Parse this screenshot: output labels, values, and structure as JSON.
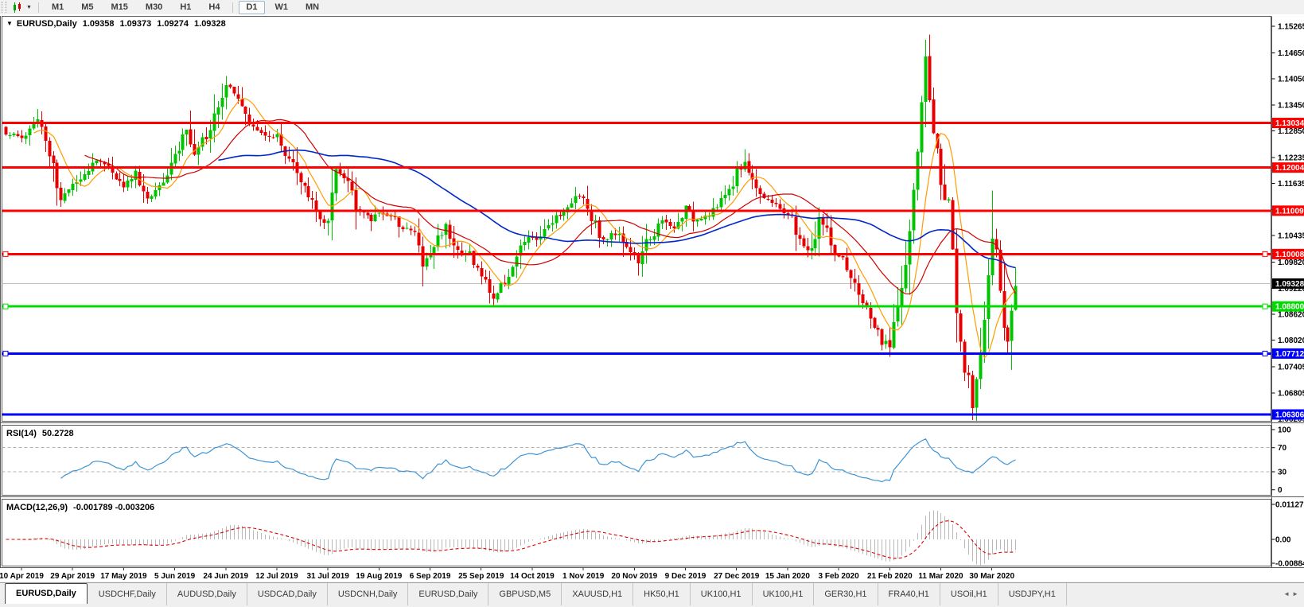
{
  "toolbar": {
    "chart_type_icon": "candlestick-chart-icon",
    "dropdown_icon": "chevron-down-icon",
    "timeframes": [
      {
        "label": "M1",
        "active": false
      },
      {
        "label": "M5",
        "active": false
      },
      {
        "label": "M15",
        "active": false
      },
      {
        "label": "M30",
        "active": false
      },
      {
        "label": "H1",
        "active": false
      },
      {
        "label": "H4",
        "active": false
      },
      {
        "label": "D1",
        "active": true
      },
      {
        "label": "W1",
        "active": false
      },
      {
        "label": "MN",
        "active": false
      }
    ]
  },
  "chart": {
    "title_symbol": "EURUSD,Daily",
    "ohlc": {
      "open": "1.09358",
      "high": "1.09373",
      "low": "1.09274",
      "close": "1.09328"
    },
    "price_axis_ticks": [
      "1.15265",
      "1.14650",
      "1.14050",
      "1.13450",
      "1.12850",
      "1.12235",
      "1.11635",
      "1.11030",
      "1.10435",
      "1.09820",
      "1.09220",
      "1.08620",
      "1.08020",
      "1.07405",
      "1.06805",
      "1.06205"
    ],
    "current_price": {
      "label": "1.09328",
      "price": 1.09328
    },
    "levels": [
      {
        "price": 1.13034,
        "label": "1.13034",
        "color": "#ff0000",
        "width": 3,
        "handles": false
      },
      {
        "price": 1.12004,
        "label": "1.12004",
        "color": "#ff0000",
        "width": 3,
        "handles": false
      },
      {
        "price": 1.11009,
        "label": "1.11009",
        "color": "#ff0000",
        "width": 3,
        "handles": false
      },
      {
        "price": 1.10008,
        "label": "1.10008",
        "color": "#ff0000",
        "width": 3,
        "handles": true
      },
      {
        "price": 1.088,
        "label": "1.08800",
        "color": "#00dc00",
        "width": 3,
        "handles": true
      },
      {
        "price": 1.07712,
        "label": "1.07712",
        "color": "#0000ff",
        "width": 3,
        "handles": true
      },
      {
        "price": 1.06306,
        "label": "1.06306",
        "color": "#0000ff",
        "width": 3,
        "handles": false
      }
    ]
  },
  "rsi": {
    "name": "RSI(14)",
    "value": "50.2728",
    "axis_ticks": [
      "100",
      "70",
      "30",
      "0"
    ],
    "level_lines": [
      70,
      30
    ]
  },
  "macd": {
    "name": "MACD(12,26,9)",
    "values": "-0.001789 -0.003206",
    "axis_ticks": [
      "0.011277",
      "0.00",
      "-0.00884"
    ]
  },
  "date_axis": [
    "10 Apr 2019",
    "29 Apr 2019",
    "17 May 2019",
    "5 Jun 2019",
    "24 Jun 2019",
    "12 Jul 2019",
    "31 Jul 2019",
    "19 Aug 2019",
    "6 Sep 2019",
    "25 Sep 2019",
    "14 Oct 2019",
    "1 Nov 2019",
    "20 Nov 2019",
    "9 Dec 2019",
    "27 Dec 2019",
    "15 Jan 2020",
    "3 Feb 2020",
    "21 Feb 2020",
    "11 Mar 2020",
    "30 Mar 2020"
  ],
  "tab_bar": {
    "tabs": [
      {
        "label": "EURUSD,Daily",
        "active": true
      },
      {
        "label": "USDCHF,Daily",
        "active": false
      },
      {
        "label": "AUDUSD,Daily",
        "active": false
      },
      {
        "label": "USDCAD,Daily",
        "active": false
      },
      {
        "label": "USDCNH,Daily",
        "active": false
      },
      {
        "label": "EURUSD,Daily",
        "active": false
      },
      {
        "label": "GBPUSD,M5",
        "active": false
      },
      {
        "label": "XAUUSD,H1",
        "active": false
      },
      {
        "label": "HK50,H1",
        "active": false
      },
      {
        "label": "UK100,H1",
        "active": false
      },
      {
        "label": "UK100,H1",
        "active": false
      },
      {
        "label": "GER30,H1",
        "active": false
      },
      {
        "label": "FRA40,H1",
        "active": false
      },
      {
        "label": "USOil,H1",
        "active": false
      },
      {
        "label": "USDJPY,H1",
        "active": false
      }
    ],
    "scroll_icons": "◄ ►"
  },
  "colors": {
    "bull": "#00c400",
    "bear": "#e60000",
    "ma_fast": "#ff9c00",
    "ma_mid": "#d20000",
    "ma_slow": "#0028c8",
    "rsi_line": "#3f95d4",
    "macd_hist": "#b9b9b9",
    "macd_signal": "#e00000",
    "current_price_line": "#c0c0c0",
    "current_tag_bg": "#000000",
    "tag_text": "#ffffff",
    "pane_border": "#5a5a5a",
    "dashed_level": "#b4b4b4"
  },
  "chart_data": {
    "type": "candlestick",
    "symbol": "EURUSD",
    "period": "Daily",
    "ohlc_display": [
      1.09358,
      1.09373,
      1.09274,
      1.09328
    ],
    "y_axis_range": [
      1.06205,
      1.15265
    ],
    "candle_count": 258,
    "first_tick_candle": 4,
    "candles_per_tick": 13,
    "close_anchors": [
      [
        0,
        1.128
      ],
      [
        4,
        1.127
      ],
      [
        8,
        1.131
      ],
      [
        11,
        1.124
      ],
      [
        14,
        1.113
      ],
      [
        17,
        1.1155
      ],
      [
        20,
        1.119
      ],
      [
        23,
        1.122
      ],
      [
        26,
        1.12
      ],
      [
        30,
        1.116
      ],
      [
        33,
        1.1185
      ],
      [
        36,
        1.113
      ],
      [
        40,
        1.1175
      ],
      [
        43,
        1.123
      ],
      [
        46,
        1.129
      ],
      [
        48,
        1.122
      ],
      [
        51,
        1.128
      ],
      [
        54,
        1.135
      ],
      [
        56,
        1.1395
      ],
      [
        59,
        1.137
      ],
      [
        62,
        1.13
      ],
      [
        65,
        1.128
      ],
      [
        69,
        1.127
      ],
      [
        72,
        1.122
      ],
      [
        76,
        1.115
      ],
      [
        80,
        1.1085
      ],
      [
        82,
        1.1065
      ],
      [
        84,
        1.119
      ],
      [
        87,
        1.117
      ],
      [
        90,
        1.11
      ],
      [
        93,
        1.108
      ],
      [
        95,
        1.11
      ],
      [
        98,
        1.1085
      ],
      [
        101,
        1.1065
      ],
      [
        104,
        1.105
      ],
      [
        106,
        1.0975
      ],
      [
        108,
        1.1
      ],
      [
        110,
        1.104
      ],
      [
        112,
        1.1065
      ],
      [
        114,
        1.103
      ],
      [
        116,
        1.0995
      ],
      [
        118,
        1.1005
      ],
      [
        120,
        1.0965
      ],
      [
        122,
        1.0935
      ],
      [
        124,
        1.09
      ],
      [
        126,
        1.0925
      ],
      [
        128,
        1.0955
      ],
      [
        130,
        1.099
      ],
      [
        132,
        1.103
      ],
      [
        134,
        1.104
      ],
      [
        136,
        1.103
      ],
      [
        138,
        1.107
      ],
      [
        140,
        1.109
      ],
      [
        143,
        1.1105
      ],
      [
        146,
        1.1145
      ],
      [
        148,
        1.111
      ],
      [
        150,
        1.107
      ],
      [
        152,
        1.103
      ],
      [
        154,
        1.1045
      ],
      [
        156,
        1.1055
      ],
      [
        158,
        1.1015
      ],
      [
        161,
        1.0985
      ],
      [
        164,
        1.104
      ],
      [
        167,
        1.1075
      ],
      [
        170,
        1.106
      ],
      [
        173,
        1.1105
      ],
      [
        175,
        1.108
      ],
      [
        178,
        1.109
      ],
      [
        181,
        1.111
      ],
      [
        184,
        1.115
      ],
      [
        186,
        1.119
      ],
      [
        188,
        1.1215
      ],
      [
        190,
        1.117
      ],
      [
        193,
        1.1135
      ],
      [
        196,
        1.111
      ],
      [
        199,
        1.1095
      ],
      [
        202,
        1.103
      ],
      [
        205,
        1.1005
      ],
      [
        207,
        1.1085
      ],
      [
        209,
        1.105
      ],
      [
        211,
        1.1
      ],
      [
        213,
        1.098
      ],
      [
        215,
        1.094
      ],
      [
        217,
        1.0915
      ],
      [
        219,
        1.087
      ],
      [
        221,
        1.0835
      ],
      [
        223,
        1.079
      ],
      [
        225,
        1.0805
      ],
      [
        226,
        1.084
      ],
      [
        228,
        1.0905
      ],
      [
        229,
        1.098
      ],
      [
        230,
        1.106
      ],
      [
        231,
        1.113
      ],
      [
        232,
        1.125
      ],
      [
        233,
        1.134
      ],
      [
        234,
        1.145
      ],
      [
        235,
        1.136
      ],
      [
        236,
        1.128
      ],
      [
        237,
        1.123
      ],
      [
        238,
        1.118
      ],
      [
        239,
        1.114
      ],
      [
        240,
        1.111
      ],
      [
        241,
        1.099
      ],
      [
        242,
        1.086
      ],
      [
        243,
        1.078
      ],
      [
        244,
        1.073
      ],
      [
        245,
        1.07
      ],
      [
        246,
        1.066
      ],
      [
        247,
        1.072
      ],
      [
        248,
        1.079
      ],
      [
        249,
        1.085
      ],
      [
        250,
        1.095
      ],
      [
        251,
        1.104
      ],
      [
        252,
        1.099
      ],
      [
        253,
        1.092
      ],
      [
        254,
        1.082
      ],
      [
        255,
        1.079
      ],
      [
        256,
        1.088
      ],
      [
        257,
        1.0933
      ]
    ],
    "high_overrides": [
      [
        56,
        1.1412
      ],
      [
        188,
        1.1239
      ],
      [
        234,
        1.1495
      ],
      [
        251,
        1.1147
      ]
    ],
    "low_overrides": [
      [
        14,
        1.111
      ],
      [
        106,
        1.0926
      ],
      [
        124,
        1.0879
      ],
      [
        223,
        1.0778
      ],
      [
        246,
        1.0636
      ],
      [
        255,
        1.077
      ]
    ],
    "moving_averages": [
      {
        "type": "SMA",
        "period": 8,
        "color_key": "ma_fast"
      },
      {
        "type": "SMA",
        "period": 21,
        "color_key": "ma_mid"
      },
      {
        "type": "SMA",
        "period": 55,
        "color_key": "ma_slow"
      }
    ],
    "indicators": [
      {
        "name": "RSI",
        "period": 14,
        "last_value": 50.2728
      },
      {
        "name": "MACD",
        "fast": 12,
        "slow": 26,
        "signal": 9,
        "last_values": [
          -0.001789,
          -0.003206
        ]
      }
    ],
    "horizontal_levels": [
      1.13034,
      1.12004,
      1.11009,
      1.10008,
      1.088,
      1.07712,
      1.06306
    ]
  }
}
